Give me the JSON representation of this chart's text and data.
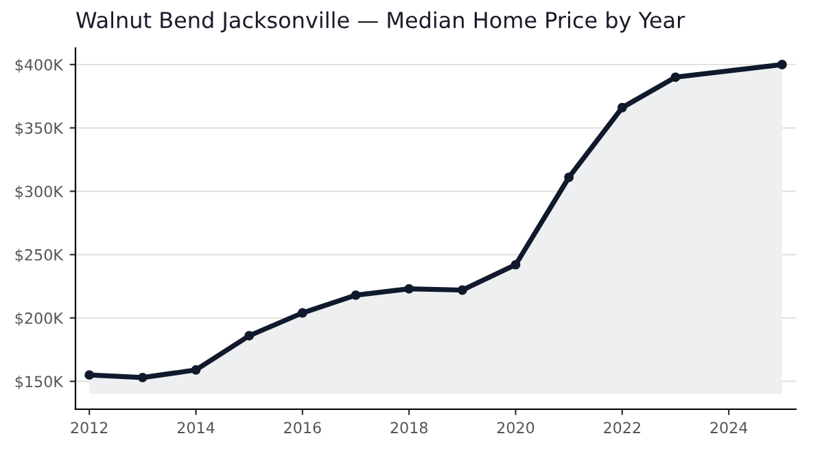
{
  "chart_data": {
    "type": "line",
    "title": "Walnut Bend Jacksonville — Median Home Price by Year",
    "x": [
      2012,
      2013,
      2014,
      2015,
      2016,
      2017,
      2018,
      2019,
      2020,
      2021,
      2022,
      2023,
      2025
    ],
    "series": [
      {
        "color": "#101a2c",
        "values": [
          155,
          153,
          159,
          186,
          204,
          218,
          223,
          222,
          242,
          311,
          366,
          390,
          400
        ],
        "lower": [
          140,
          140,
          140,
          140,
          140,
          140,
          140,
          140,
          140,
          140,
          140,
          140,
          140
        ],
        "upper": [
          155,
          153,
          159,
          186,
          204,
          218,
          223,
          222,
          242,
          311,
          366,
          390,
          400
        ]
      }
    ],
    "xlim": [
      2011.74,
      2025.26
    ],
    "xticks": [
      2012,
      2014,
      2016,
      2018,
      2020,
      2022,
      2024
    ],
    "ylim": [
      128,
      413
    ],
    "yticks": [
      {
        "value": 150,
        "label": "$150K"
      },
      {
        "value": 200,
        "label": "$200K"
      },
      {
        "value": 250,
        "label": "$250K"
      },
      {
        "value": 300,
        "label": "$300K"
      },
      {
        "value": 350,
        "label": "$350K"
      },
      {
        "value": 400,
        "label": "$400K"
      }
    ],
    "grid": "y",
    "marker": "circle",
    "line_style": "solid"
  }
}
